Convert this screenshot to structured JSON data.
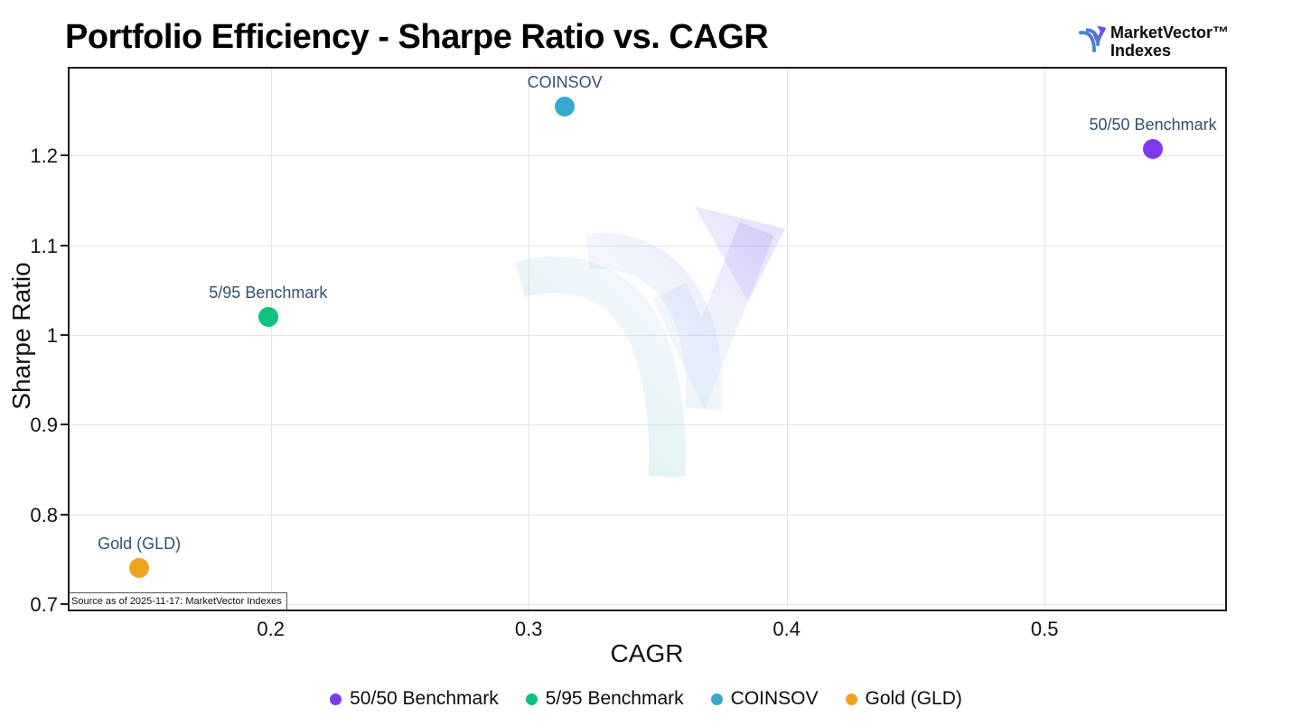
{
  "header": {
    "title": "Portfolio Efficiency - Sharpe Ratio vs. CAGR",
    "logo": {
      "line1": "MarketVector™",
      "line2": "Indexes"
    }
  },
  "chart_data": {
    "type": "scatter",
    "title": "Portfolio Efficiency - Sharpe Ratio vs. CAGR",
    "xlabel": "CAGR",
    "ylabel": "Sharpe Ratio",
    "xlim": [
      0.122,
      0.57
    ],
    "ylim": [
      0.694,
      1.297
    ],
    "x_ticks": [
      0.2,
      0.3,
      0.4,
      0.5
    ],
    "y_ticks": [
      0.7,
      0.8,
      0.9,
      1,
      1.1,
      1.2
    ],
    "grid": true,
    "legend_position": "bottom-center",
    "point_label_color": "#33516e",
    "series": [
      {
        "name": "50/50 Benchmark",
        "x": 0.542,
        "y": 1.207,
        "color": "#7d3af2"
      },
      {
        "name": "5/95 Benchmark",
        "x": 0.199,
        "y": 1.02,
        "color": "#0ec17e"
      },
      {
        "name": "COINSOV",
        "x": 0.314,
        "y": 1.255,
        "color": "#38a9cd"
      },
      {
        "name": "Gold (GLD)",
        "x": 0.149,
        "y": 0.74,
        "color": "#f0a31e"
      }
    ],
    "source_note": "Source as of 2025-11-17: MarketVector Indexes"
  }
}
